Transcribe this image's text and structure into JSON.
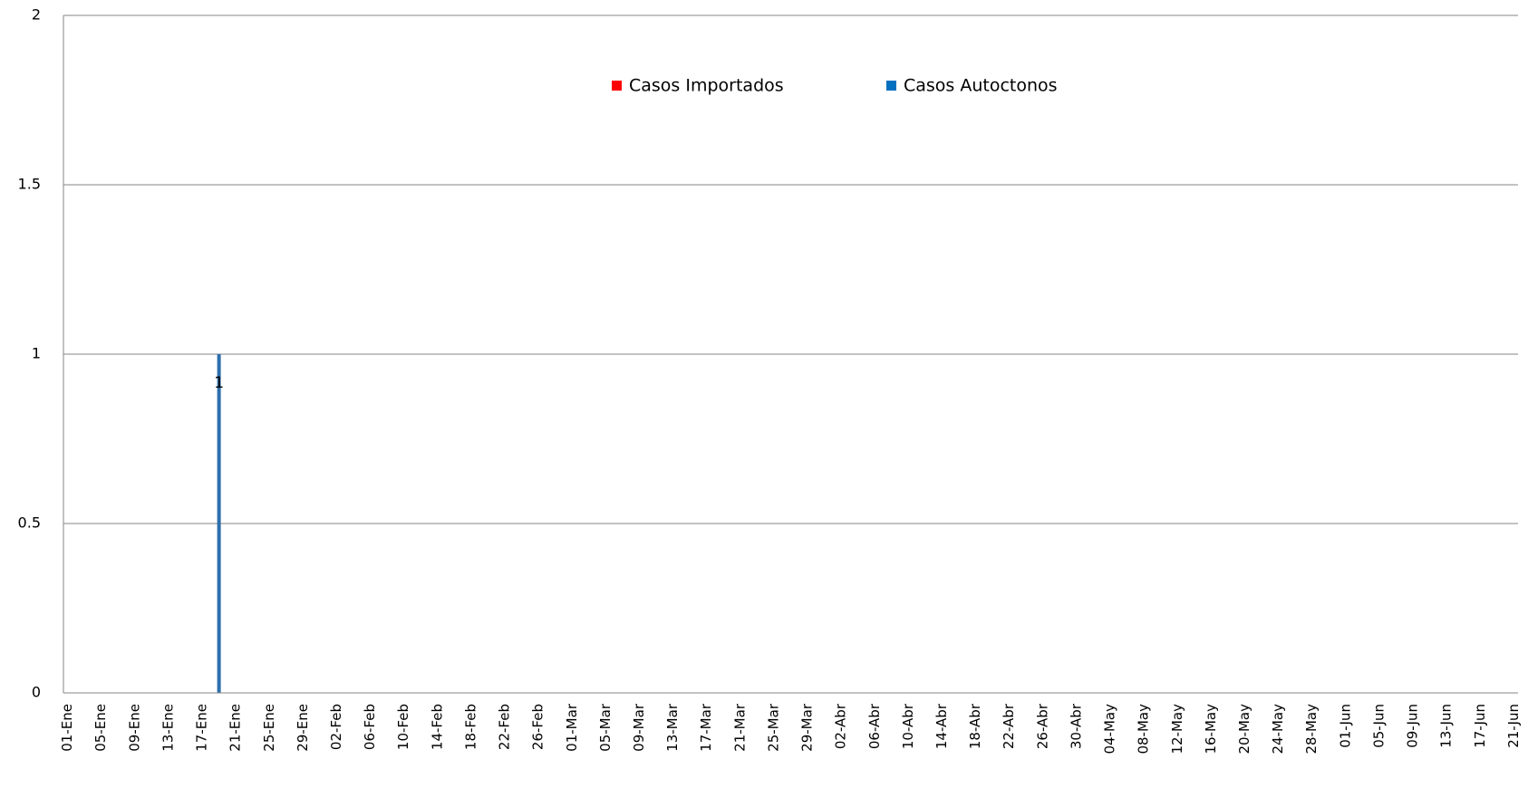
{
  "chart_data": {
    "type": "bar",
    "stacked": true,
    "legend": "top",
    "grid": true,
    "categories": [
      "01-Ene",
      null,
      null,
      null,
      "05-Ene",
      null,
      null,
      null,
      "09-Ene",
      null,
      null,
      null,
      "13-Ene",
      null,
      null,
      null,
      "17-Ene",
      null,
      null,
      null,
      "21-Ene",
      null,
      null,
      null,
      "25-Ene",
      null,
      null,
      null,
      "29-Ene",
      null,
      null,
      null,
      "02-Feb",
      null,
      null,
      null,
      "06-Feb",
      null,
      null,
      null,
      "10-Feb",
      null,
      null,
      null,
      "14-Feb",
      null,
      null,
      null,
      "18-Feb",
      null,
      null,
      null,
      "22-Feb",
      null,
      null,
      null,
      "26-Feb",
      null,
      null,
      null,
      "01-Mar",
      null,
      null,
      null,
      "05-Mar",
      null,
      null,
      null,
      "09-Mar",
      null,
      null,
      null,
      "13-Mar",
      null,
      null,
      null,
      "17-Mar",
      null,
      null,
      null,
      "21-Mar",
      null,
      null,
      null,
      "25-Mar",
      null,
      null,
      null,
      "29-Mar",
      null,
      null,
      null,
      "02-Abr",
      null,
      null,
      null,
      "06-Abr",
      null,
      null,
      null,
      "10-Abr",
      null,
      null,
      null,
      "14-Abr",
      null,
      null,
      null,
      "18-Abr",
      null,
      null,
      null,
      "22-Abr",
      null,
      null,
      null,
      "26-Abr",
      null,
      null,
      null,
      "30-Abr",
      null,
      null,
      null,
      "04-May",
      null,
      null,
      null,
      "08-May",
      null,
      null,
      null,
      "12-May",
      null,
      null,
      null,
      "16-May",
      null,
      null,
      null,
      "20-May",
      null,
      null,
      null,
      "24-May",
      null,
      null,
      null,
      "28-May",
      null,
      null,
      null,
      "01-Jun",
      null,
      null,
      null,
      "05-Jun",
      null,
      null,
      null,
      "09-Jun",
      null,
      null,
      null,
      "13-Jun",
      null,
      null,
      null,
      "17-Jun",
      null,
      null,
      null,
      "21-Jun"
    ],
    "series": [
      {
        "name": "Casos Importados",
        "color": "#ff0000",
        "values": [
          0,
          0,
          0,
          0,
          0,
          0,
          0,
          0,
          0,
          0,
          0,
          0,
          0,
          0,
          0,
          0,
          0,
          0,
          0,
          0,
          0,
          0,
          0,
          0,
          0,
          0,
          0,
          0,
          0,
          0,
          0,
          0,
          0,
          0,
          0,
          0,
          0,
          0,
          0,
          0,
          0,
          0,
          0,
          0,
          0,
          0,
          0,
          0,
          0,
          0,
          0,
          0,
          0,
          0,
          0,
          0,
          0,
          0,
          0,
          0,
          0,
          0,
          0,
          0,
          0,
          0,
          0,
          0,
          0,
          0,
          0,
          0,
          0,
          0,
          0,
          0,
          0,
          0,
          0,
          0,
          0,
          0,
          0,
          0,
          0,
          0,
          0,
          0,
          0,
          0,
          0,
          0,
          0,
          0,
          0,
          0,
          0,
          0,
          0,
          0,
          0,
          0,
          0,
          0,
          0,
          0,
          0,
          0,
          0,
          0,
          0,
          0,
          0,
          0,
          0,
          0,
          0,
          0,
          0,
          0,
          0,
          0,
          0,
          0,
          0,
          0,
          0,
          0,
          0,
          0,
          0,
          0,
          0,
          0,
          0,
          0,
          0,
          0,
          0,
          0,
          0,
          0,
          0,
          0,
          0,
          0,
          0,
          0,
          0,
          0,
          0,
          0,
          0,
          0,
          0,
          0,
          0,
          0,
          0,
          0,
          0,
          0,
          0,
          0,
          0,
          0,
          0,
          0,
          0,
          0,
          0,
          0,
          0
        ]
      },
      {
        "name": "Casos Autoctonos",
        "color": "#0070c0",
        "bar_color": "#2e6fad",
        "values": [
          0,
          0,
          0,
          0,
          0,
          0,
          0,
          0,
          0,
          0,
          0,
          0,
          0,
          0,
          0,
          0,
          0,
          0,
          1,
          0,
          0,
          0,
          0,
          0,
          0,
          0,
          0,
          0,
          0,
          0,
          0,
          0,
          0,
          0,
          0,
          0,
          0,
          0,
          0,
          0,
          0,
          0,
          0,
          0,
          0,
          0,
          0,
          0,
          0,
          0,
          0,
          0,
          0,
          0,
          0,
          0,
          0,
          0,
          0,
          0,
          0,
          0,
          0,
          0,
          0,
          0,
          0,
          0,
          0,
          0,
          0,
          0,
          0,
          0,
          0,
          0,
          0,
          0,
          0,
          0,
          0,
          0,
          0,
          0,
          0,
          0,
          0,
          0,
          0,
          0,
          0,
          0,
          0,
          0,
          0,
          0,
          0,
          0,
          0,
          0,
          0,
          0,
          0,
          0,
          0,
          0,
          0,
          0,
          0,
          0,
          0,
          0,
          0,
          0,
          0,
          0,
          0,
          0,
          0,
          0,
          0,
          0,
          0,
          0,
          0,
          0,
          0,
          0,
          0,
          0,
          0,
          0,
          0,
          0,
          0,
          0,
          0,
          0,
          0,
          0,
          0,
          0,
          0,
          0,
          0,
          0,
          0,
          0,
          0,
          0,
          0,
          0,
          0,
          0,
          0,
          0,
          0,
          0,
          0,
          0,
          0,
          0,
          0,
          0,
          0,
          0,
          0,
          0,
          0,
          0,
          0,
          0,
          0
        ]
      }
    ],
    "ylim": [
      0,
      2
    ],
    "yticks": [
      0,
      0.5,
      1,
      1.5,
      2
    ]
  }
}
